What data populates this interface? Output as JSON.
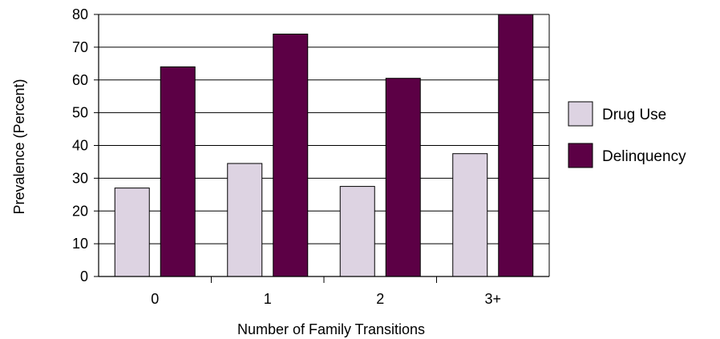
{
  "chart_data": {
    "type": "bar",
    "categories": [
      "0",
      "1",
      "2",
      "3+"
    ],
    "series": [
      {
        "name": "Drug Use",
        "values": [
          27,
          34.5,
          27.5,
          37.5
        ],
        "color": "#ddd3e2"
      },
      {
        "name": "Delinquency",
        "values": [
          64,
          74,
          60.5,
          80
        ],
        "color": "#5c0045"
      }
    ],
    "xlabel": "Number of Family Transitions",
    "ylabel": "Prevalence (Percent)",
    "ylim": [
      0,
      80
    ],
    "yticks": [
      0,
      10,
      20,
      30,
      40,
      50,
      60,
      70,
      80
    ],
    "grid": true,
    "legend_position": "right"
  }
}
